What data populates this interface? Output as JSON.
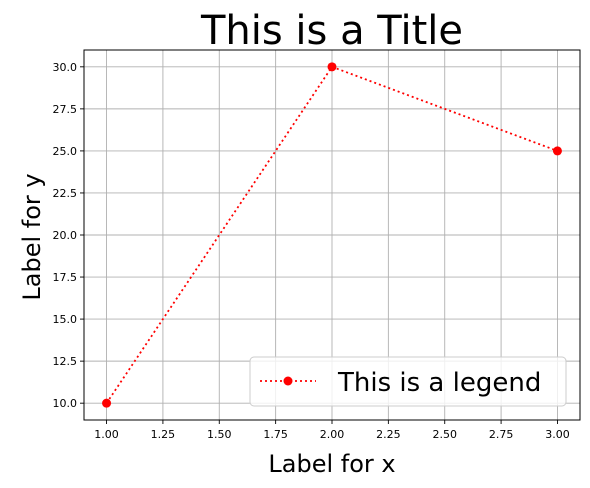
{
  "chart_data": {
    "type": "line",
    "title": "This is a Title",
    "xlabel": "Label for x",
    "ylabel": "Label for y",
    "x": [
      1.0,
      2.0,
      3.0
    ],
    "series": [
      {
        "name": "This is a legend",
        "values": [
          10.0,
          30.0,
          25.0
        ],
        "color": "#ff0000",
        "line_style": "dotted",
        "marker": "circle"
      }
    ],
    "xlim": [
      0.9,
      3.1
    ],
    "ylim": [
      9.0,
      31.0
    ],
    "xticks": [
      "1.00",
      "1.25",
      "1.50",
      "1.75",
      "2.00",
      "2.25",
      "2.50",
      "2.75",
      "3.00"
    ],
    "yticks": [
      "10.0",
      "12.5",
      "15.0",
      "17.5",
      "20.0",
      "22.5",
      "25.0",
      "27.5",
      "30.0"
    ],
    "grid": true,
    "legend_position": "lower-right"
  }
}
